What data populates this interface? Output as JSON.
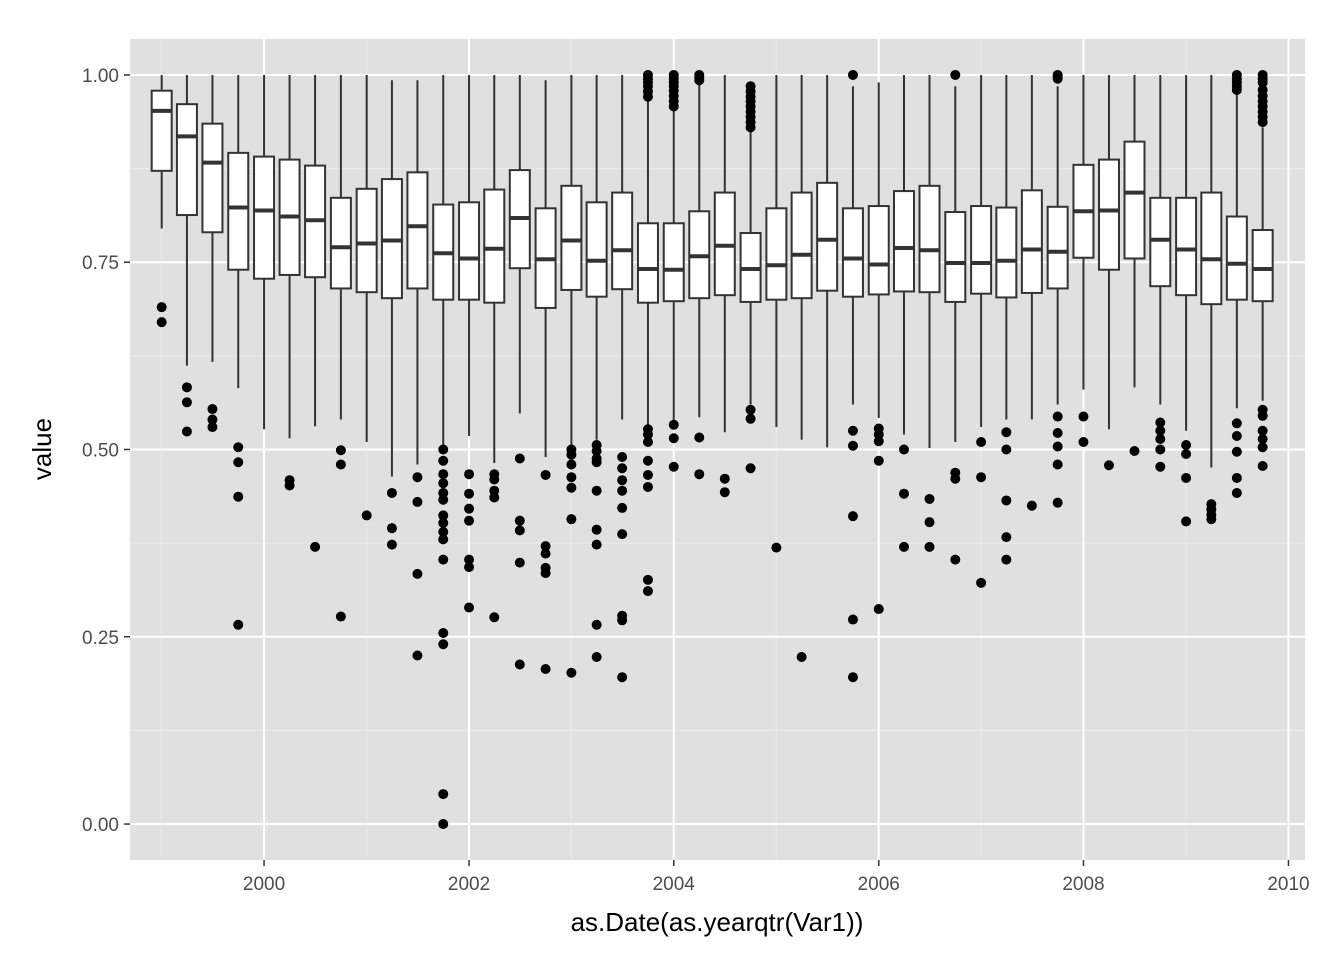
{
  "chart_data": {
    "type": "box",
    "xlabel": "as.Date(as.yearqtr(Var1))",
    "ylabel": "value",
    "xlim": [
      "1998-09-10",
      "2010-03-01"
    ],
    "ylim": [
      -0.048,
      1.048
    ],
    "x_ticks": [
      {
        "label": "2000",
        "date": "2000-01-01"
      },
      {
        "label": "2002",
        "date": "2002-01-01"
      },
      {
        "label": "2004",
        "date": "2004-01-01"
      },
      {
        "label": "2006",
        "date": "2006-01-01"
      },
      {
        "label": "2008",
        "date": "2008-01-01"
      },
      {
        "label": "2010",
        "date": "2010-01-01"
      }
    ],
    "y_ticks": [
      {
        "label": "0.00",
        "value": 0.0
      },
      {
        "label": "0.25",
        "value": 0.25
      },
      {
        "label": "0.50",
        "value": 0.5
      },
      {
        "label": "0.75",
        "value": 0.75
      },
      {
        "label": "1.00",
        "value": 1.0
      }
    ],
    "grid": true,
    "legend": "none",
    "colors": {
      "panel": "#e0e0e0",
      "grid_major": "#ffffff",
      "grid_minor": "#ebebeb",
      "box_fill": "#ffffff",
      "box_line": "#333333",
      "outlier": "#000000",
      "tick_text": "#4d4d4d",
      "axis_title": "#000000"
    },
    "boxes": [
      {
        "date": "1999-01-01",
        "q1": 0.872,
        "median": 0.952,
        "q3": 0.979,
        "whisker_low": 0.795,
        "whisker_high": 1.0,
        "outliers": [
          0.69,
          0.67
        ]
      },
      {
        "date": "1999-04-01",
        "q1": 0.813,
        "median": 0.918,
        "q3": 0.961,
        "whisker_low": 0.612,
        "whisker_high": 1.0,
        "outliers": [
          0.583,
          0.563,
          0.524
        ]
      },
      {
        "date": "1999-07-01",
        "q1": 0.79,
        "median": 0.883,
        "q3": 0.935,
        "whisker_low": 0.617,
        "whisker_high": 1.0,
        "outliers": [
          0.554,
          0.54,
          0.53
        ]
      },
      {
        "date": "1999-10-01",
        "q1": 0.74,
        "median": 0.823,
        "q3": 0.896,
        "whisker_low": 0.582,
        "whisker_high": 1.0,
        "outliers": [
          0.503,
          0.483,
          0.437,
          0.266
        ]
      },
      {
        "date": "2000-01-01",
        "q1": 0.728,
        "median": 0.819,
        "q3": 0.891,
        "whisker_low": 0.527,
        "whisker_high": 1.0,
        "outliers": []
      },
      {
        "date": "2000-04-01",
        "q1": 0.733,
        "median": 0.811,
        "q3": 0.887,
        "whisker_low": 0.515,
        "whisker_high": 1.0,
        "outliers": [
          0.459,
          0.452
        ]
      },
      {
        "date": "2000-07-01",
        "q1": 0.73,
        "median": 0.806,
        "q3": 0.879,
        "whisker_low": 0.531,
        "whisker_high": 1.0,
        "outliers": [
          0.37
        ]
      },
      {
        "date": "2000-10-01",
        "q1": 0.715,
        "median": 0.77,
        "q3": 0.836,
        "whisker_low": 0.54,
        "whisker_high": 1.0,
        "outliers": [
          0.499,
          0.48,
          0.277
        ]
      },
      {
        "date": "2001-01-01",
        "q1": 0.71,
        "median": 0.775,
        "q3": 0.848,
        "whisker_low": 0.51,
        "whisker_high": 1.0,
        "outliers": [
          0.412
        ]
      },
      {
        "date": "2001-04-01",
        "q1": 0.702,
        "median": 0.779,
        "q3": 0.861,
        "whisker_low": 0.464,
        "whisker_high": 0.993,
        "outliers": [
          0.442,
          0.395,
          0.373
        ]
      },
      {
        "date": "2001-07-01",
        "q1": 0.715,
        "median": 0.798,
        "q3": 0.87,
        "whisker_low": 0.48,
        "whisker_high": 0.993,
        "outliers": [
          0.463,
          0.43,
          0.334,
          0.225
        ]
      },
      {
        "date": "2001-10-01",
        "q1": 0.7,
        "median": 0.762,
        "q3": 0.827,
        "whisker_low": 0.505,
        "whisker_high": 1.0,
        "outliers": [
          0.5,
          0.485,
          0.467,
          0.455,
          0.442,
          0.433,
          0.412,
          0.402,
          0.39,
          0.38,
          0.353,
          0.255,
          0.24,
          0.04,
          0.0
        ]
      },
      {
        "date": "2002-01-01",
        "q1": 0.7,
        "median": 0.755,
        "q3": 0.83,
        "whisker_low": 0.518,
        "whisker_high": 1.0,
        "outliers": [
          0.467,
          0.441,
          0.421,
          0.405,
          0.353,
          0.343,
          0.289
        ]
      },
      {
        "date": "2002-04-01",
        "q1": 0.696,
        "median": 0.768,
        "q3": 0.847,
        "whisker_low": 0.482,
        "whisker_high": 1.0,
        "outliers": [
          0.467,
          0.46,
          0.445,
          0.436,
          0.276
        ]
      },
      {
        "date": "2002-07-01",
        "q1": 0.742,
        "median": 0.809,
        "q3": 0.873,
        "whisker_low": 0.548,
        "whisker_high": 1.0,
        "outliers": [
          0.488,
          0.405,
          0.392,
          0.349,
          0.213
        ]
      },
      {
        "date": "2002-10-01",
        "q1": 0.689,
        "median": 0.754,
        "q3": 0.822,
        "whisker_low": 0.49,
        "whisker_high": 0.993,
        "outliers": [
          0.466,
          0.371,
          0.361,
          0.342,
          0.335,
          0.207
        ]
      },
      {
        "date": "2003-01-01",
        "q1": 0.713,
        "median": 0.779,
        "q3": 0.852,
        "whisker_low": 0.505,
        "whisker_high": 1.0,
        "outliers": [
          0.5,
          0.493,
          0.48,
          0.463,
          0.449,
          0.407,
          0.202
        ]
      },
      {
        "date": "2003-04-01",
        "q1": 0.704,
        "median": 0.752,
        "q3": 0.83,
        "whisker_low": 0.513,
        "whisker_high": 1.0,
        "outliers": [
          0.506,
          0.498,
          0.488,
          0.483,
          0.445,
          0.393,
          0.373,
          0.266,
          0.223
        ]
      },
      {
        "date": "2003-07-01",
        "q1": 0.714,
        "median": 0.766,
        "q3": 0.843,
        "whisker_low": 0.54,
        "whisker_high": 1.0,
        "outliers": [
          0.49,
          0.475,
          0.459,
          0.445,
          0.422,
          0.387,
          0.278,
          0.272,
          0.196
        ]
      },
      {
        "date": "2003-10-01",
        "q1": 0.696,
        "median": 0.741,
        "q3": 0.802,
        "whisker_low": 0.533,
        "whisker_high": 0.97,
        "outliers": [
          1.0,
          0.995,
          0.99,
          0.985,
          0.978,
          0.971,
          0.527,
          0.52,
          0.51,
          0.485,
          0.466,
          0.45,
          0.326,
          0.311
        ]
      },
      {
        "date": "2004-01-01",
        "q1": 0.698,
        "median": 0.74,
        "q3": 0.802,
        "whisker_low": 0.538,
        "whisker_high": 0.955,
        "outliers": [
          1.0,
          0.995,
          0.99,
          0.985,
          0.979,
          0.972,
          0.965,
          0.958,
          0.533,
          0.515,
          0.477
        ]
      },
      {
        "date": "2004-04-01",
        "q1": 0.702,
        "median": 0.758,
        "q3": 0.818,
        "whisker_low": 0.543,
        "whisker_high": 0.99,
        "outliers": [
          1.0,
          0.996,
          0.993,
          0.516,
          0.467
        ]
      },
      {
        "date": "2004-07-01",
        "q1": 0.706,
        "median": 0.772,
        "q3": 0.843,
        "whisker_low": 0.523,
        "whisker_high": 1.0,
        "outliers": [
          0.461,
          0.443
        ]
      },
      {
        "date": "2004-10-01",
        "q1": 0.697,
        "median": 0.741,
        "q3": 0.789,
        "whisker_low": 0.56,
        "whisker_high": 0.925,
        "outliers": [
          0.985,
          0.978,
          0.971,
          0.965,
          0.958,
          0.951,
          0.944,
          0.937,
          0.93,
          0.553,
          0.541,
          0.475
        ]
      },
      {
        "date": "2005-01-01",
        "q1": 0.7,
        "median": 0.746,
        "q3": 0.822,
        "whisker_low": 0.53,
        "whisker_high": 1.0,
        "outliers": [
          0.369
        ]
      },
      {
        "date": "2005-04-01",
        "q1": 0.702,
        "median": 0.76,
        "q3": 0.843,
        "whisker_low": 0.513,
        "whisker_high": 1.0,
        "outliers": [
          0.223
        ]
      },
      {
        "date": "2005-07-01",
        "q1": 0.712,
        "median": 0.78,
        "q3": 0.856,
        "whisker_low": 0.503,
        "whisker_high": 1.0,
        "outliers": []
      },
      {
        "date": "2005-10-01",
        "q1": 0.704,
        "median": 0.755,
        "q3": 0.822,
        "whisker_low": 0.56,
        "whisker_high": 0.985,
        "outliers": [
          1.0,
          0.525,
          0.505,
          0.411,
          0.273,
          0.196
        ]
      },
      {
        "date": "2006-01-01",
        "q1": 0.707,
        "median": 0.747,
        "q3": 0.825,
        "whisker_low": 0.542,
        "whisker_high": 0.99,
        "outliers": [
          0.528,
          0.52,
          0.511,
          0.485,
          0.287
        ]
      },
      {
        "date": "2006-04-01",
        "q1": 0.711,
        "median": 0.769,
        "q3": 0.845,
        "whisker_low": 0.52,
        "whisker_high": 1.0,
        "outliers": [
          0.5,
          0.441,
          0.37
        ]
      },
      {
        "date": "2006-07-01",
        "q1": 0.71,
        "median": 0.766,
        "q3": 0.852,
        "whisker_low": 0.502,
        "whisker_high": 1.0,
        "outliers": [
          0.434,
          0.403,
          0.37
        ]
      },
      {
        "date": "2006-10-01",
        "q1": 0.697,
        "median": 0.749,
        "q3": 0.817,
        "whisker_low": 0.51,
        "whisker_high": 0.985,
        "outliers": [
          1.0,
          0.469,
          0.461,
          0.353
        ]
      },
      {
        "date": "2007-01-01",
        "q1": 0.708,
        "median": 0.749,
        "q3": 0.825,
        "whisker_low": 0.53,
        "whisker_high": 1.0,
        "outliers": [
          0.51,
          0.463,
          0.322
        ]
      },
      {
        "date": "2007-04-01",
        "q1": 0.703,
        "median": 0.752,
        "q3": 0.823,
        "whisker_low": 0.54,
        "whisker_high": 1.0,
        "outliers": [
          0.523,
          0.5,
          0.432,
          0.383,
          0.353
        ]
      },
      {
        "date": "2007-07-01",
        "q1": 0.709,
        "median": 0.767,
        "q3": 0.846,
        "whisker_low": 0.54,
        "whisker_high": 1.0,
        "outliers": [
          0.425
        ]
      },
      {
        "date": "2007-10-01",
        "q1": 0.715,
        "median": 0.764,
        "q3": 0.824,
        "whisker_low": 0.56,
        "whisker_high": 0.985,
        "outliers": [
          1.0,
          0.998,
          0.995,
          0.544,
          0.522,
          0.504,
          0.48,
          0.429
        ]
      },
      {
        "date": "2008-01-01",
        "q1": 0.756,
        "median": 0.818,
        "q3": 0.88,
        "whisker_low": 0.58,
        "whisker_high": 1.0,
        "outliers": [
          0.544,
          0.51
        ]
      },
      {
        "date": "2008-04-01",
        "q1": 0.74,
        "median": 0.819,
        "q3": 0.887,
        "whisker_low": 0.527,
        "whisker_high": 1.0,
        "outliers": [
          0.479
        ]
      },
      {
        "date": "2008-07-01",
        "q1": 0.755,
        "median": 0.843,
        "q3": 0.911,
        "whisker_low": 0.583,
        "whisker_high": 1.0,
        "outliers": [
          0.498
        ]
      },
      {
        "date": "2008-10-01",
        "q1": 0.718,
        "median": 0.78,
        "q3": 0.836,
        "whisker_low": 0.56,
        "whisker_high": 1.0,
        "outliers": [
          0.536,
          0.525,
          0.514,
          0.5,
          0.477
        ]
      },
      {
        "date": "2009-01-01",
        "q1": 0.706,
        "median": 0.767,
        "q3": 0.836,
        "whisker_low": 0.525,
        "whisker_high": 1.0,
        "outliers": [
          0.506,
          0.494,
          0.462,
          0.404
        ]
      },
      {
        "date": "2009-04-01",
        "q1": 0.694,
        "median": 0.754,
        "q3": 0.843,
        "whisker_low": 0.476,
        "whisker_high": 1.0,
        "outliers": [
          0.427,
          0.42,
          0.413,
          0.407
        ]
      },
      {
        "date": "2009-07-01",
        "q1": 0.7,
        "median": 0.748,
        "q3": 0.811,
        "whisker_low": 0.555,
        "whisker_high": 0.975,
        "outliers": [
          1.0,
          0.995,
          0.99,
          0.985,
          0.98,
          0.535,
          0.518,
          0.497,
          0.462,
          0.442
        ]
      },
      {
        "date": "2009-10-01",
        "q1": 0.698,
        "median": 0.741,
        "q3": 0.793,
        "whisker_low": 0.565,
        "whisker_high": 0.93,
        "outliers": [
          1.0,
          0.995,
          0.99,
          0.98,
          0.972,
          0.965,
          0.958,
          0.951,
          0.944,
          0.937,
          0.553,
          0.545,
          0.525,
          0.514,
          0.503,
          0.478
        ]
      }
    ]
  }
}
